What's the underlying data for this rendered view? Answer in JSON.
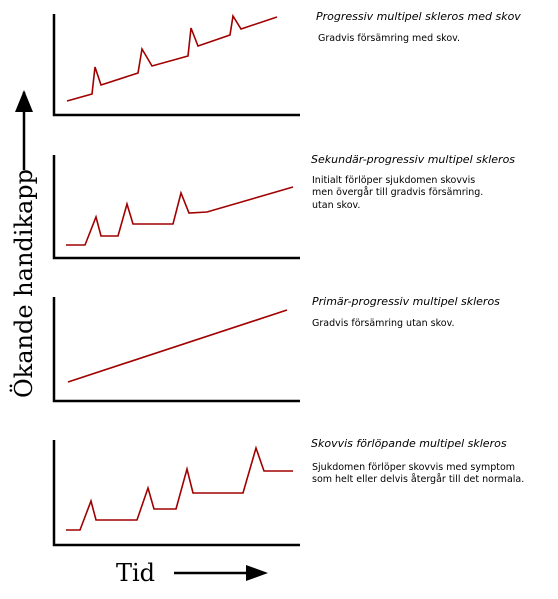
{
  "y_axis_label": "Ökande handikapp",
  "x_axis_label": "Tid",
  "panels": [
    {
      "title": "Progressiv multipel skleros med skov",
      "description": [
        "Gradvis försämring med skov."
      ]
    },
    {
      "title": "Sekundär-progressiv multipel skleros",
      "description": [
        "Initialt förlöper sjukdomen skovvis",
        "men övergår till gradvis försämring.",
        "utan skov."
      ]
    },
    {
      "title": "Primär-progressiv multipel skleros",
      "description": [
        "Gradvis försämring utan skov."
      ]
    },
    {
      "title": "Skovvis förlöpande multipel skleros",
      "description": [
        "Sjukdomen förlöper skovvis med symptom",
        "som helt eller delvis återgår till det normala."
      ]
    }
  ],
  "colors": {
    "curve": "#a00000",
    "axes": "#000000"
  }
}
